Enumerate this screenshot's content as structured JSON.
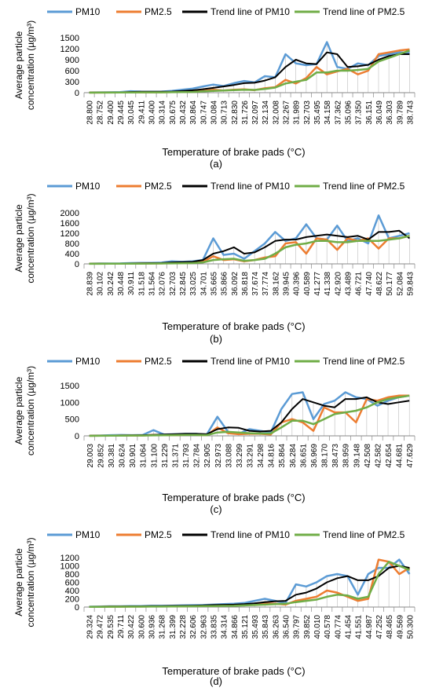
{
  "chart_data": [
    {
      "type": "line",
      "panel_label": "(a)",
      "ylabel": "Average particle concentration (µg/m³)",
      "xlabel": "Temperature of brake pads (°C)",
      "ylim": [
        0,
        1500
      ],
      "yticks": [
        0,
        300,
        600,
        900,
        1200,
        1500
      ],
      "grid": false,
      "legend_position": "top",
      "categories": [
        "28.800",
        "28.752",
        "29.400",
        "29.445",
        "30.045",
        "29.411",
        "30.400",
        "30.314",
        "30.675",
        "30.432",
        "30.864",
        "30.747",
        "30.084",
        "30.713",
        "32.830",
        "31.726",
        "32.097",
        "32.134",
        "32.008",
        "32.267",
        "31.989",
        "32.703",
        "35.495",
        "34.158",
        "37.362",
        "35.096",
        "37.350",
        "36.151",
        "36.049",
        "36.303",
        "39.789",
        "38.743"
      ],
      "series": [
        {
          "name": "PM10",
          "color": "#5b9bd5",
          "values": [
            5,
            8,
            10,
            15,
            40,
            30,
            25,
            30,
            50,
            80,
            110,
            170,
            220,
            180,
            260,
            320,
            280,
            450,
            420,
            1050,
            800,
            750,
            780,
            1380,
            700,
            650,
            800,
            750,
            1000,
            1050,
            1100,
            1100
          ]
        },
        {
          "name": "PM2.5",
          "color": "#ed7d31",
          "values": [
            2,
            3,
            4,
            5,
            10,
            8,
            8,
            10,
            15,
            20,
            30,
            50,
            80,
            60,
            80,
            90,
            70,
            120,
            150,
            350,
            250,
            400,
            700,
            500,
            580,
            650,
            500,
            600,
            1050,
            1100,
            1150,
            1180
          ]
        },
        {
          "name": "Trend line of PM10",
          "color": "#000000",
          "values": [
            3,
            5,
            6,
            9,
            20,
            25,
            25,
            25,
            30,
            45,
            65,
            95,
            130,
            170,
            210,
            260,
            270,
            330,
            420,
            700,
            900,
            800,
            780,
            1100,
            1050,
            700,
            720,
            760,
            900,
            1000,
            1050,
            1050
          ]
        },
        {
          "name": "Trend line of PM2.5",
          "color": "#70ad47",
          "values": [
            1,
            2,
            3,
            4,
            7,
            8,
            8,
            8,
            12,
            15,
            20,
            35,
            50,
            60,
            70,
            80,
            75,
            100,
            140,
            250,
            300,
            350,
            550,
            550,
            600,
            600,
            620,
            650,
            850,
            950,
            1050,
            1150
          ]
        }
      ]
    },
    {
      "type": "line",
      "panel_label": "(b)",
      "ylabel": "Average particle concentration (µg/m³)",
      "xlabel": "Temperature of brake pads (°C)",
      "ylim": [
        0,
        2000
      ],
      "yticks": [
        0,
        400,
        800,
        1200,
        1600,
        2000
      ],
      "grid": false,
      "legend_position": "top",
      "categories": [
        "28.839",
        "30.102",
        "30.242",
        "30.448",
        "30.911",
        "31.518",
        "31.564",
        "32.076",
        "32.703",
        "32.845",
        "33.025",
        "34.701",
        "35.665",
        "35.866",
        "36.092",
        "36.818",
        "37.674",
        "37.774",
        "38.162",
        "39.945",
        "40.396",
        "40.589",
        "41.277",
        "41.338",
        "42.920",
        "43.489",
        "46.721",
        "47.740",
        "48.622",
        "50.177",
        "52.084",
        "59.843"
      ],
      "series": [
        {
          "name": "PM10",
          "color": "#5b9bd5",
          "values": [
            10,
            15,
            15,
            20,
            30,
            40,
            40,
            50,
            100,
            80,
            100,
            150,
            1000,
            350,
            400,
            200,
            500,
            800,
            1250,
            900,
            1000,
            1550,
            1000,
            950,
            1500,
            900,
            1000,
            800,
            1900,
            1000,
            1100,
            1200
          ]
        },
        {
          "name": "PM2.5",
          "color": "#ed7d31",
          "values": [
            5,
            5,
            5,
            8,
            10,
            15,
            15,
            20,
            30,
            30,
            40,
            80,
            300,
            150,
            180,
            100,
            150,
            250,
            300,
            800,
            850,
            400,
            1000,
            950,
            550,
            1000,
            900,
            1000,
            600,
            1000,
            1000,
            1100
          ]
        },
        {
          "name": "Trend line of PM10",
          "color": "#000000",
          "values": [
            8,
            10,
            12,
            15,
            20,
            25,
            30,
            35,
            60,
            70,
            80,
            150,
            400,
            500,
            650,
            400,
            450,
            650,
            900,
            950,
            950,
            1050,
            1100,
            1150,
            1100,
            1050,
            1100,
            950,
            1250,
            1250,
            1300,
            1000
          ]
        },
        {
          "name": "Trend line of  PM2.5",
          "color": "#70ad47",
          "values": [
            3,
            4,
            5,
            6,
            8,
            10,
            12,
            15,
            20,
            25,
            30,
            60,
            150,
            180,
            200,
            120,
            150,
            200,
            400,
            650,
            750,
            800,
            900,
            900,
            850,
            850,
            900,
            900,
            900,
            950,
            1000,
            1100
          ]
        }
      ]
    },
    {
      "type": "line",
      "panel_label": "(c)",
      "ylabel": "Average particle concentration  (µg/m³)",
      "xlabel": "Temperature of brake pads (°C)",
      "ylim": [
        0,
        1500
      ],
      "yticks": [
        0,
        500,
        1000,
        1500
      ],
      "grid": false,
      "legend_position": "top",
      "categories": [
        "29.003",
        "29.852",
        "30.381",
        "30.624",
        "30.901",
        "31.064",
        "31.100",
        "31.229",
        "31.371",
        "31.793",
        "32.784",
        "32.905",
        "32.973",
        "33.088",
        "33.299",
        "33.291",
        "34.298",
        "34.816",
        "35.864",
        "36.284",
        "36.651",
        "36.969",
        "38.170",
        "38.473",
        "38.959",
        "39.148",
        "42.508",
        "42.582",
        "42.654",
        "44.681",
        "47.629"
      ],
      "series": [
        {
          "name": "PM10",
          "color": "#5b9bd5",
          "values": [
            5,
            10,
            20,
            25,
            20,
            25,
            170,
            40,
            50,
            60,
            60,
            40,
            570,
            120,
            60,
            200,
            150,
            100,
            800,
            1250,
            1300,
            500,
            950,
            1050,
            1300,
            1150,
            1100,
            900,
            1050,
            1150,
            1200
          ]
        },
        {
          "name": "PM2.5",
          "color": "#ed7d31",
          "values": [
            2,
            5,
            8,
            10,
            10,
            10,
            30,
            20,
            20,
            30,
            30,
            20,
            250,
            80,
            50,
            60,
            60,
            40,
            400,
            500,
            400,
            150,
            850,
            700,
            700,
            400,
            1100,
            1050,
            1150,
            1200,
            1200
          ]
        },
        {
          "name": "Trend line of PM10",
          "color": "#000000",
          "values": [
            3,
            6,
            10,
            15,
            18,
            20,
            30,
            40,
            50,
            60,
            60,
            50,
            200,
            250,
            240,
            150,
            130,
            150,
            400,
            800,
            1100,
            1000,
            900,
            850,
            1100,
            1100,
            1150,
            1000,
            950,
            1000,
            1050
          ]
        },
        {
          "name": "Trend line of PM2.5",
          "color": "#70ad47",
          "values": [
            1,
            3,
            5,
            8,
            10,
            10,
            15,
            18,
            20,
            25,
            25,
            20,
            100,
            120,
            100,
            80,
            70,
            70,
            250,
            450,
            450,
            350,
            500,
            650,
            700,
            750,
            850,
            1000,
            1100,
            1150,
            1200
          ]
        }
      ]
    },
    {
      "type": "line",
      "panel_label": "(d)",
      "ylabel": "Average particle concentration (µg/m³)",
      "xlabel": "Temperature of brake pads (°C)",
      "ylim": [
        0,
        1200
      ],
      "yticks": [
        0,
        200,
        400,
        600,
        800,
        1000,
        1200
      ],
      "grid": false,
      "legend_position": "top",
      "categories": [
        "29.324",
        "29.472",
        "29.535",
        "29.711",
        "30.422",
        "30.600",
        "30.936",
        "31.268",
        "31.399",
        "32.228",
        "32.606",
        "32.963",
        "33.835",
        "34.314",
        "34.866",
        "35.121",
        "35.493",
        "35.843",
        "36.263",
        "36.540",
        "39.797",
        "39.852",
        "40.010",
        "40.578",
        "40.774",
        "41.454",
        "41.551",
        "44.987",
        "47.252",
        "48.465",
        "49.569",
        "50.300"
      ],
      "series": [
        {
          "name": "PM10",
          "color": "#5b9bd5",
          "values": [
            10,
            15,
            20,
            20,
            25,
            25,
            30,
            30,
            35,
            40,
            45,
            50,
            60,
            70,
            80,
            100,
            150,
            200,
            150,
            100,
            550,
            500,
            600,
            750,
            800,
            750,
            300,
            800,
            950,
            950,
            1150,
            800
          ]
        },
        {
          "name": "PM2.5",
          "color": "#ed7d31",
          "values": [
            5,
            8,
            10,
            10,
            12,
            12,
            15,
            15,
            18,
            20,
            22,
            25,
            30,
            35,
            40,
            50,
            70,
            90,
            80,
            60,
            150,
            200,
            250,
            400,
            350,
            250,
            150,
            200,
            1150,
            1100,
            800,
            950
          ]
        },
        {
          "name": "Trend line of PM10",
          "color": "#000000",
          "values": [
            8,
            10,
            15,
            15,
            20,
            20,
            22,
            25,
            28,
            30,
            35,
            40,
            50,
            55,
            60,
            70,
            90,
            120,
            140,
            150,
            300,
            350,
            450,
            600,
            700,
            750,
            650,
            650,
            750,
            950,
            1000,
            950
          ]
        },
        {
          "name": "Trend line of PM2.5",
          "color": "#70ad47",
          "values": [
            3,
            5,
            8,
            8,
            10,
            10,
            12,
            12,
            15,
            18,
            20,
            22,
            25,
            28,
            30,
            40,
            50,
            60,
            70,
            80,
            120,
            150,
            180,
            250,
            300,
            280,
            200,
            250,
            800,
            1100,
            1000,
            900
          ]
        }
      ]
    }
  ]
}
